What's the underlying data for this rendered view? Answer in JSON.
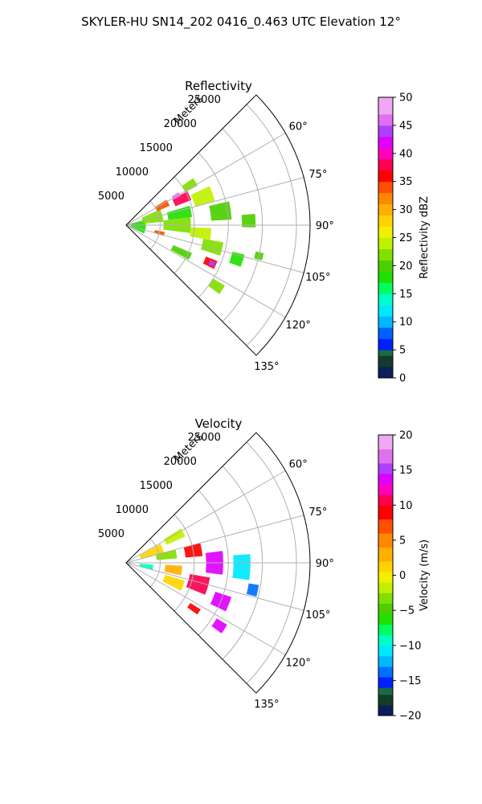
{
  "figure": {
    "title": "SKYLER-HU  SN14_202  0416_0.463 UTC Elevation 12°"
  },
  "chart_data": [
    {
      "type": "polar-sector",
      "title": "Reflectivity",
      "radial_axis_label": "Meters",
      "radial_ticks": [
        5000,
        10000,
        15000,
        20000,
        25000
      ],
      "radial_tick_labels": [
        "5000",
        "10000",
        "15000",
        "20000",
        "25000"
      ],
      "r_max": 27000,
      "angle_range_deg": [
        45,
        135
      ],
      "angle_ticks": [
        60,
        75,
        90,
        105,
        120,
        135
      ],
      "angle_tick_labels": [
        "60°",
        "75°",
        "90°",
        "105°",
        "120°",
        "135°"
      ],
      "grid": true,
      "colorbar": {
        "label": "Reflectivity dBZ",
        "min": 0,
        "max": 50,
        "ticks": [
          0,
          5,
          10,
          15,
          20,
          25,
          30,
          35,
          40,
          45,
          50
        ],
        "tick_labels": [
          "0",
          "5",
          "10",
          "15",
          "20",
          "25",
          "30",
          "35",
          "40",
          "45",
          "50"
        ],
        "stops": [
          {
            "v": 0,
            "c": "#0a1f5c"
          },
          {
            "v": 2,
            "c": "#143c2a"
          },
          {
            "v": 4,
            "c": "#1a6b44"
          },
          {
            "v": 5,
            "c": "#0020ff"
          },
          {
            "v": 7,
            "c": "#0060ff"
          },
          {
            "v": 9,
            "c": "#00b8ff"
          },
          {
            "v": 11,
            "c": "#00e8ff"
          },
          {
            "v": 13,
            "c": "#00ffc8"
          },
          {
            "v": 15,
            "c": "#00ff60"
          },
          {
            "v": 17,
            "c": "#20e000"
          },
          {
            "v": 19,
            "c": "#4ccf00"
          },
          {
            "v": 21,
            "c": "#80e000"
          },
          {
            "v": 23,
            "c": "#c0f000"
          },
          {
            "v": 25,
            "c": "#f0f000"
          },
          {
            "v": 27,
            "c": "#ffd400"
          },
          {
            "v": 29,
            "c": "#ffb000"
          },
          {
            "v": 31,
            "c": "#ff8800"
          },
          {
            "v": 33,
            "c": "#ff5000"
          },
          {
            "v": 35,
            "c": "#ff0000"
          },
          {
            "v": 37,
            "c": "#ff0050"
          },
          {
            "v": 39,
            "c": "#ff00c0"
          },
          {
            "v": 41,
            "c": "#e000ff"
          },
          {
            "v": 43,
            "c": "#b040ff"
          },
          {
            "v": 45,
            "c": "#e070f0"
          },
          {
            "v": 47,
            "c": "#f0a8f4"
          },
          {
            "v": 50,
            "c": "#fde6fd"
          }
        ]
      },
      "echoes": [
        {
          "r": 1800,
          "a": 95,
          "dr": 2200,
          "da": 40,
          "v": 18
        },
        {
          "r": 4000,
          "a": 75,
          "dr": 3000,
          "da": 20,
          "v": 21
        },
        {
          "r": 6000,
          "a": 62,
          "dr": 2000,
          "da": 8,
          "v": 33
        },
        {
          "r": 9000,
          "a": 65,
          "dr": 2500,
          "da": 8,
          "v": 38
        },
        {
          "r": 8500,
          "a": 60,
          "dr": 1200,
          "da": 4,
          "v": 45
        },
        {
          "r": 11000,
          "a": 58,
          "dr": 2000,
          "da": 6,
          "v": 22
        },
        {
          "r": 12000,
          "a": 70,
          "dr": 3000,
          "da": 10,
          "v": 24
        },
        {
          "r": 8000,
          "a": 78,
          "dr": 3500,
          "da": 10,
          "v": 17
        },
        {
          "r": 7500,
          "a": 90,
          "dr": 4000,
          "da": 14,
          "v": 21
        },
        {
          "r": 14000,
          "a": 82,
          "dr": 3000,
          "da": 10,
          "v": 20
        },
        {
          "r": 18000,
          "a": 88,
          "dr": 2000,
          "da": 6,
          "v": 19
        },
        {
          "r": 5000,
          "a": 103,
          "dr": 1500,
          "da": 6,
          "v": 33
        },
        {
          "r": 11000,
          "a": 96,
          "dr": 3000,
          "da": 8,
          "v": 23
        },
        {
          "r": 13000,
          "a": 104,
          "dr": 3000,
          "da": 8,
          "v": 21
        },
        {
          "r": 13500,
          "a": 114,
          "dr": 1800,
          "da": 5,
          "v": 35
        },
        {
          "r": 13800,
          "a": 114,
          "dr": 900,
          "da": 3,
          "v": 43
        },
        {
          "r": 17000,
          "a": 107,
          "dr": 1800,
          "da": 6,
          "v": 17
        },
        {
          "r": 9000,
          "a": 116,
          "dr": 3000,
          "da": 6,
          "v": 20
        },
        {
          "r": 16000,
          "a": 124,
          "dr": 2000,
          "da": 5,
          "v": 21
        },
        {
          "r": 20000,
          "a": 103,
          "dr": 1200,
          "da": 3,
          "v": 20
        }
      ]
    },
    {
      "type": "polar-sector",
      "title": "Velocity",
      "radial_axis_label": "Meters",
      "radial_ticks": [
        5000,
        10000,
        15000,
        20000,
        25000
      ],
      "radial_tick_labels": [
        "5000",
        "10000",
        "15000",
        "20000",
        "25000"
      ],
      "r_max": 27000,
      "angle_range_deg": [
        45,
        135
      ],
      "angle_ticks": [
        60,
        75,
        90,
        105,
        120,
        135
      ],
      "angle_tick_labels": [
        "60°",
        "75°",
        "90°",
        "105°",
        "120°",
        "135°"
      ],
      "grid": true,
      "colorbar": {
        "label": "Velocity (m/s)",
        "min": -20,
        "max": 20,
        "ticks": [
          -20,
          -15,
          -10,
          -5,
          0,
          5,
          10,
          15,
          20
        ],
        "tick_labels": [
          "−20",
          "−15",
          "−10",
          "−5",
          "0",
          "5",
          "10",
          "15",
          "20"
        ],
        "stops": [
          {
            "v": -20,
            "c": "#0a1f5c"
          },
          {
            "v": -18.5,
            "c": "#143c2a"
          },
          {
            "v": -17,
            "c": "#1a6b44"
          },
          {
            "v": -16,
            "c": "#0020ff"
          },
          {
            "v": -14.5,
            "c": "#0070ff"
          },
          {
            "v": -13,
            "c": "#00b8ff"
          },
          {
            "v": -11.5,
            "c": "#00e8ff"
          },
          {
            "v": -10,
            "c": "#00ffc8"
          },
          {
            "v": -8.5,
            "c": "#00ff60"
          },
          {
            "v": -7,
            "c": "#20e000"
          },
          {
            "v": -5.5,
            "c": "#4ccf00"
          },
          {
            "v": -4,
            "c": "#80e000"
          },
          {
            "v": -2.5,
            "c": "#c0f000"
          },
          {
            "v": -1,
            "c": "#f0f000"
          },
          {
            "v": 0.5,
            "c": "#ffd400"
          },
          {
            "v": 2,
            "c": "#ffb000"
          },
          {
            "v": 4,
            "c": "#ff8800"
          },
          {
            "v": 6,
            "c": "#ff5000"
          },
          {
            "v": 8,
            "c": "#ff0000"
          },
          {
            "v": 10,
            "c": "#ff0050"
          },
          {
            "v": 11.5,
            "c": "#ff00c0"
          },
          {
            "v": 13,
            "c": "#e000ff"
          },
          {
            "v": 14.5,
            "c": "#b040ff"
          },
          {
            "v": 16,
            "c": "#e070f0"
          },
          {
            "v": 18,
            "c": "#f0a8f4"
          },
          {
            "v": 20,
            "c": "#fde6fd"
          }
        ]
      },
      "echoes": [
        {
          "r": 4000,
          "a": 68,
          "dr": 3500,
          "da": 14,
          "v": 1
        },
        {
          "r": 8000,
          "a": 62,
          "dr": 3000,
          "da": 8,
          "v": -2
        },
        {
          "r": 6000,
          "a": 80,
          "dr": 3000,
          "da": 10,
          "v": -3
        },
        {
          "r": 10000,
          "a": 80,
          "dr": 2500,
          "da": 10,
          "v": 8
        },
        {
          "r": 3000,
          "a": 100,
          "dr": 2000,
          "da": 12,
          "v": -10
        },
        {
          "r": 7000,
          "a": 98,
          "dr": 2500,
          "da": 10,
          "v": 3
        },
        {
          "r": 7500,
          "a": 112,
          "dr": 3000,
          "da": 10,
          "v": 1
        },
        {
          "r": 11000,
          "a": 106,
          "dr": 3000,
          "da": 12,
          "v": 10
        },
        {
          "r": 13000,
          "a": 90,
          "dr": 2500,
          "da": 14,
          "v": 13
        },
        {
          "r": 15000,
          "a": 112,
          "dr": 2500,
          "da": 8,
          "v": 14
        },
        {
          "r": 17000,
          "a": 92,
          "dr": 2500,
          "da": 12,
          "v": -11
        },
        {
          "r": 19000,
          "a": 102,
          "dr": 1500,
          "da": 5,
          "v": -14
        },
        {
          "r": 16500,
          "a": 124,
          "dr": 1800,
          "da": 5,
          "v": 14
        },
        {
          "r": 12000,
          "a": 124,
          "dr": 1800,
          "da": 4,
          "v": 9
        }
      ]
    }
  ]
}
